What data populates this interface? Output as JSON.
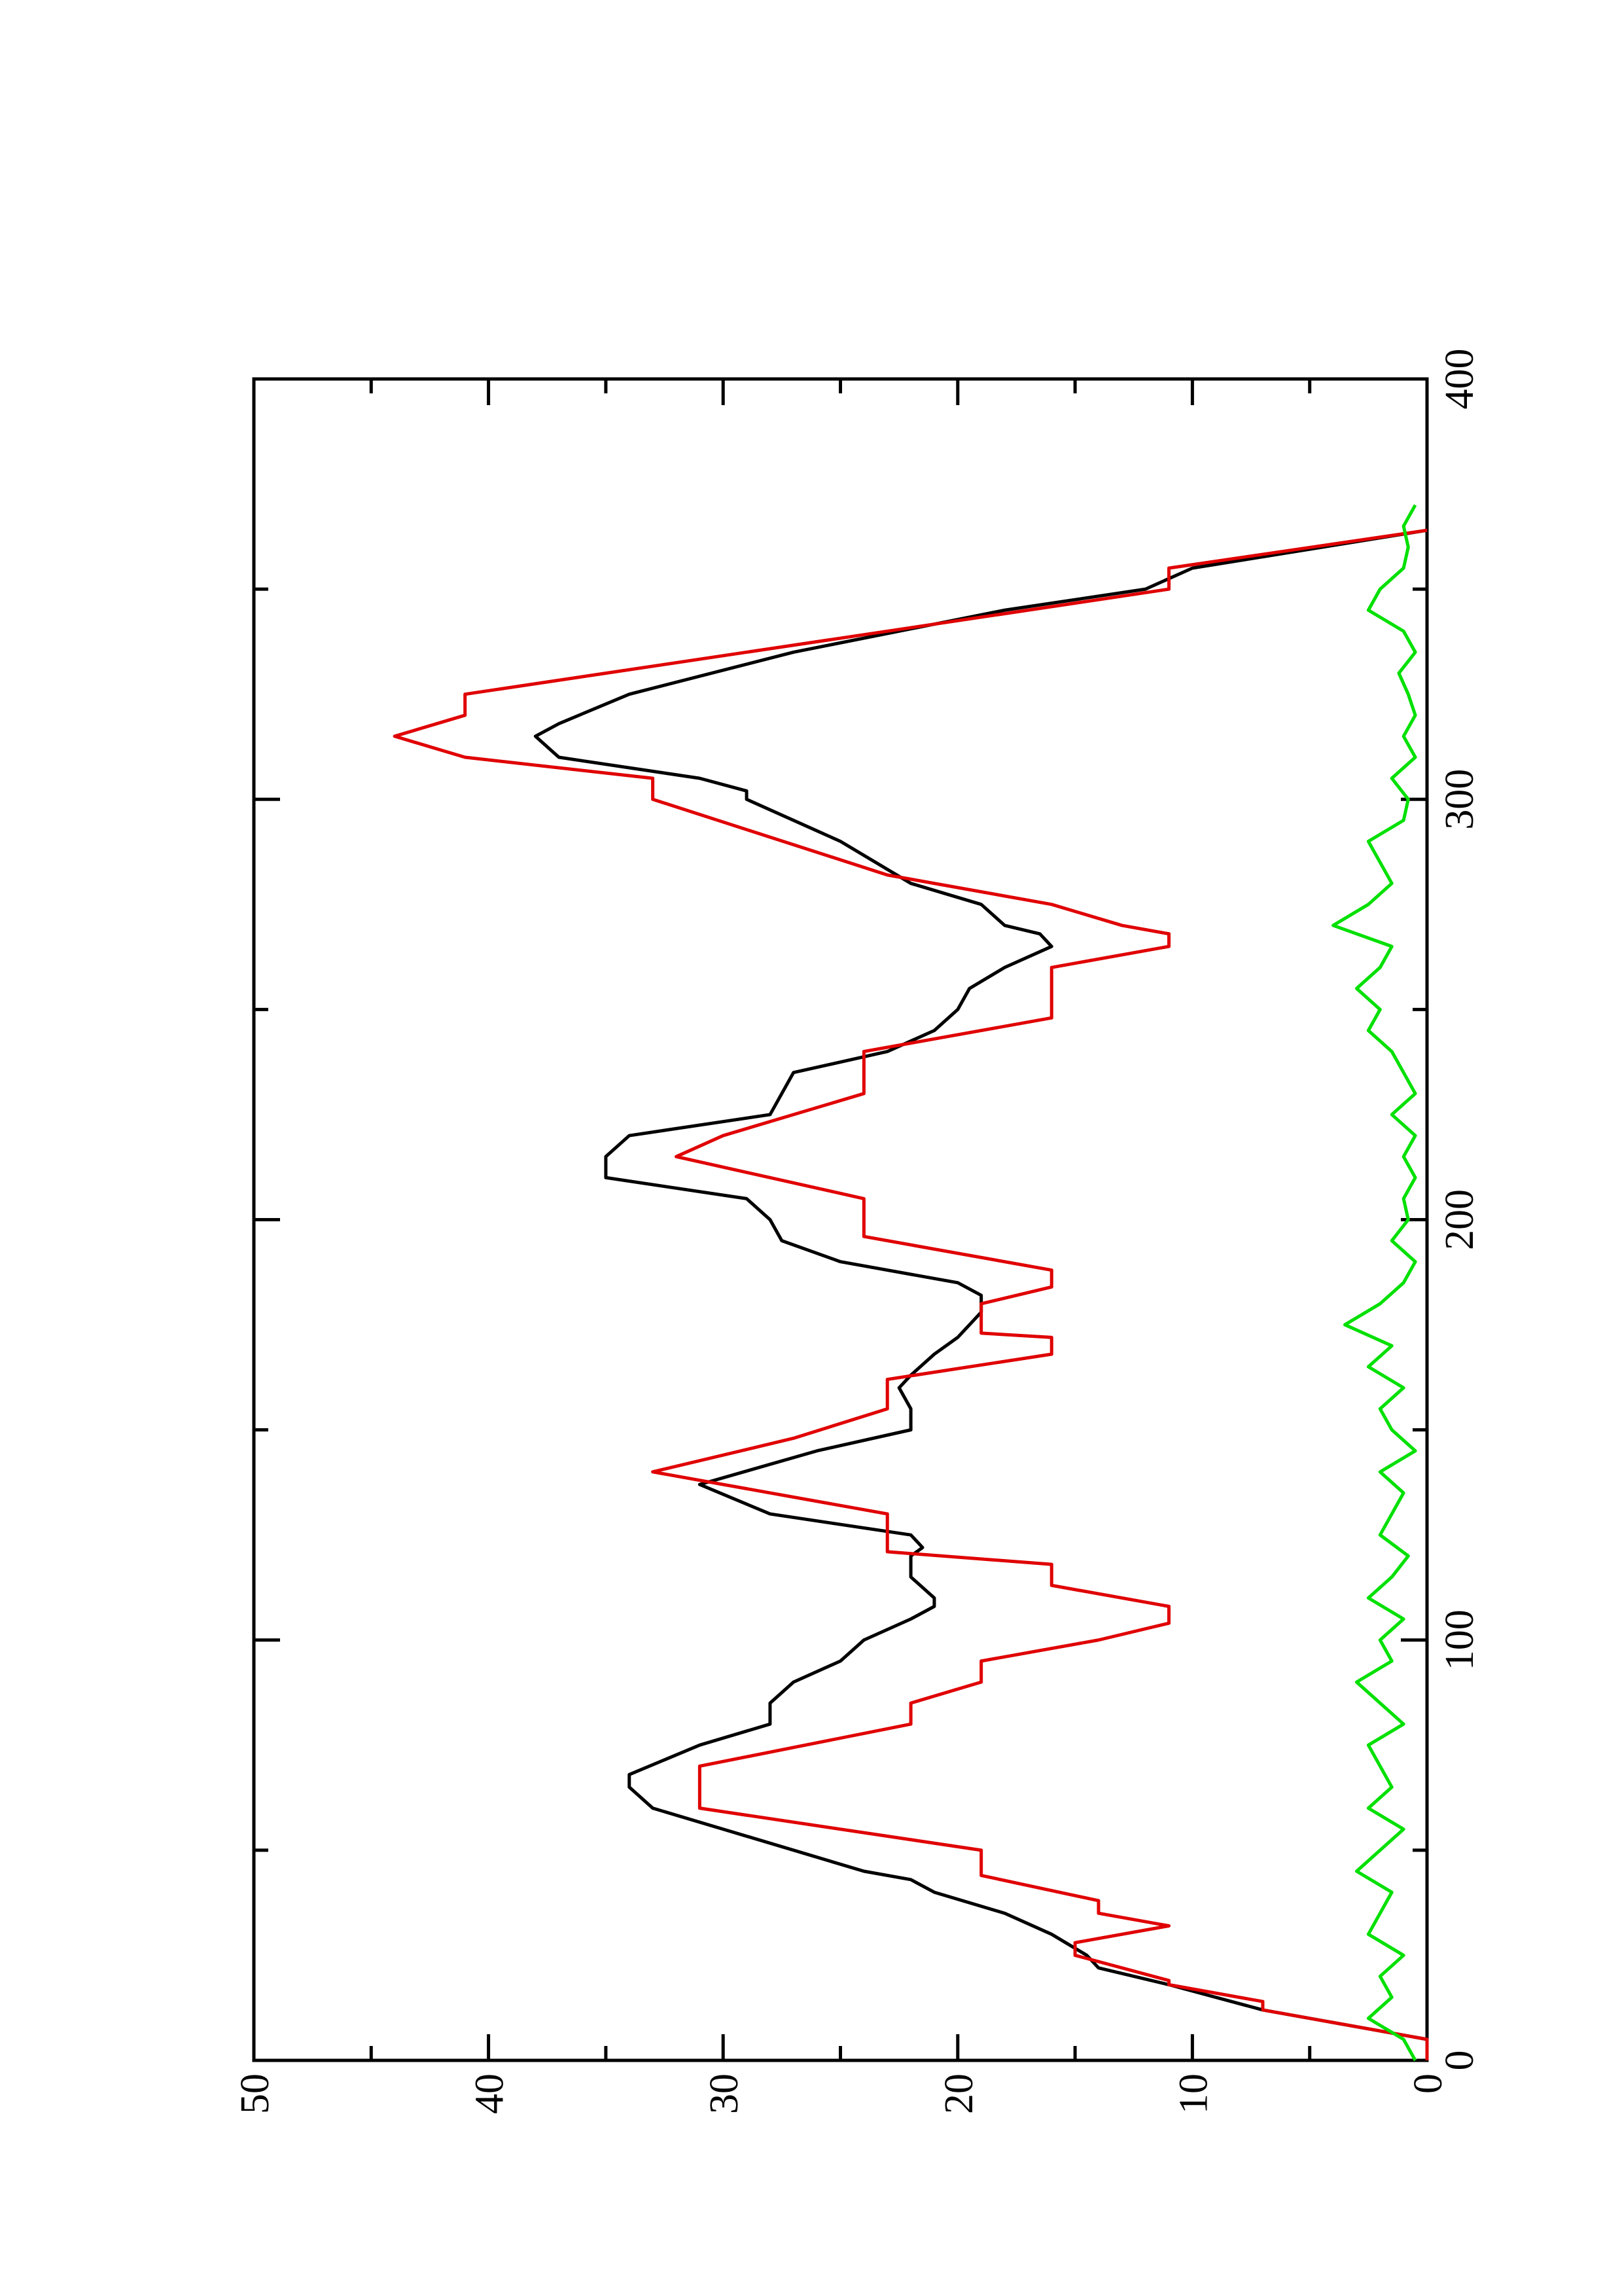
{
  "chart_data": {
    "type": "line",
    "xlim": [
      0,
      400
    ],
    "xticks": [
      0,
      100,
      200,
      300,
      400
    ],
    "xminorticks": [
      50,
      150,
      250,
      350
    ],
    "ylim": [
      0,
      50
    ],
    "yticks": [
      0,
      10,
      20,
      30,
      40,
      50
    ],
    "yminorticks": [
      5,
      15,
      25,
      35,
      45
    ],
    "series": [
      {
        "color": "#000000",
        "x": [
          0,
          5,
          12,
          18,
          22,
          25,
          30,
          35,
          40,
          43,
          45,
          55,
          60,
          65,
          68,
          75,
          80,
          85,
          90,
          95,
          100,
          105,
          108,
          110,
          115,
          120,
          122,
          125,
          130,
          137,
          145,
          150,
          155,
          160,
          163,
          168,
          172,
          178,
          182,
          185,
          190,
          195,
          200,
          205,
          210,
          215,
          220,
          225,
          230,
          235,
          240,
          245,
          250,
          255,
          260,
          265,
          268,
          270,
          275,
          280,
          290,
          300,
          302,
          305,
          310,
          315,
          318,
          325,
          335,
          345,
          350,
          355,
          364
        ],
        "values": [
          0,
          0,
          7,
          11,
          14,
          14.5,
          16,
          18,
          21,
          22,
          24,
          30,
          33,
          34,
          34,
          31,
          28,
          28,
          27,
          25,
          24,
          22,
          21,
          21,
          22,
          22,
          21.5,
          22,
          28,
          31,
          26,
          22,
          22,
          22.5,
          22,
          21,
          20,
          19,
          19,
          20,
          25,
          27.5,
          28,
          29,
          35,
          35,
          34,
          28,
          27.5,
          27,
          23,
          21,
          20,
          19.5,
          18,
          16,
          16.5,
          18,
          19,
          22,
          25,
          29,
          29,
          31,
          37,
          38,
          37,
          34,
          27,
          18,
          12,
          10,
          0
        ]
      },
      {
        "color": "#e00000",
        "x": [
          0,
          5,
          12,
          14,
          18,
          19,
          25,
          28,
          32,
          35,
          38,
          44,
          50,
          60,
          70,
          80,
          85,
          90,
          95,
          100,
          104,
          108,
          113,
          118,
          121,
          130,
          140,
          148,
          155,
          162,
          168,
          172,
          173,
          180,
          184,
          188,
          196,
          205,
          215,
          220,
          230,
          240,
          248,
          260,
          265,
          268,
          270,
          275,
          282,
          300,
          305,
          310,
          315,
          320,
          325,
          350,
          355,
          364
        ],
        "values": [
          0,
          0,
          7,
          7,
          11,
          11,
          15,
          15,
          11,
          14,
          14,
          19,
          19,
          31,
          31,
          22,
          22,
          19,
          19,
          14,
          11,
          11,
          16,
          16,
          23,
          23,
          33,
          27,
          23,
          23,
          16,
          16,
          19,
          19,
          16,
          16,
          24,
          24,
          32,
          30,
          24,
          24,
          16,
          16,
          11,
          11,
          13,
          16,
          23,
          33,
          33,
          41,
          44,
          41,
          41,
          11,
          11,
          0
        ]
      },
      {
        "color": "#00e000",
        "x": [
          0,
          5,
          10,
          15,
          20,
          25,
          30,
          35,
          40,
          45,
          50,
          55,
          60,
          65,
          70,
          75,
          80,
          85,
          90,
          95,
          100,
          105,
          110,
          115,
          120,
          125,
          130,
          135,
          140,
          145,
          150,
          155,
          160,
          165,
          170,
          175,
          180,
          185,
          190,
          195,
          200,
          205,
          210,
          215,
          220,
          225,
          230,
          235,
          240,
          245,
          250,
          255,
          260,
          265,
          270,
          275,
          280,
          285,
          290,
          295,
          300,
          305,
          310,
          315,
          320,
          325,
          330,
          335,
          340,
          345,
          350,
          355,
          360,
          365,
          370
        ],
        "values": [
          0.5,
          1,
          2.5,
          1.5,
          2,
          1,
          2.5,
          2,
          1.5,
          3,
          2,
          1,
          2.5,
          1.5,
          2,
          2.5,
          1,
          2,
          3,
          1.5,
          2,
          1,
          2.5,
          1.5,
          0.8,
          2,
          1.5,
          1,
          2,
          0.5,
          1.5,
          2,
          1,
          2.5,
          1.5,
          3.5,
          2,
          1,
          0.5,
          1.5,
          0.8,
          1,
          0.5,
          1,
          0.5,
          1.5,
          0.5,
          1,
          1.5,
          2.5,
          2,
          3,
          2,
          1.5,
          4,
          2.5,
          1.5,
          2,
          2.5,
          1,
          0.8,
          1.5,
          0.5,
          1,
          0.5,
          0.8,
          1.2,
          0.5,
          1,
          2.5,
          2,
          1,
          0.8,
          1,
          0.5
        ]
      }
    ]
  }
}
